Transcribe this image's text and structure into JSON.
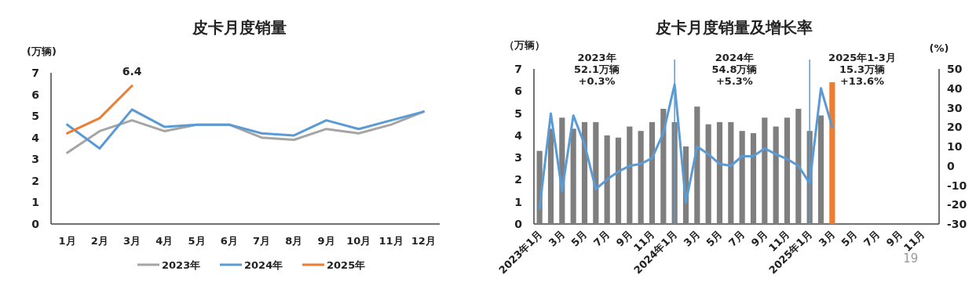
{
  "chart_data": [
    {
      "type": "line",
      "title": "皮卡月度销量",
      "ylabel": "(万辆)",
      "categories": [
        "1月",
        "2月",
        "3月",
        "4月",
        "5月",
        "6月",
        "7月",
        "8月",
        "9月",
        "10月",
        "11月",
        "12月"
      ],
      "series": [
        {
          "name": "2023年",
          "color": "#a5a5a5",
          "values": [
            3.3,
            4.3,
            4.8,
            4.3,
            4.6,
            4.6,
            4.0,
            3.9,
            4.4,
            4.2,
            4.6,
            5.2
          ]
        },
        {
          "name": "2024年",
          "color": "#5b9bd5",
          "values": [
            4.6,
            3.5,
            5.3,
            4.5,
            4.6,
            4.6,
            4.2,
            4.1,
            4.8,
            4.4,
            4.8,
            5.2
          ]
        },
        {
          "name": "2025年",
          "color": "#ed7d31",
          "values": [
            4.2,
            4.9,
            6.4,
            null,
            null,
            null,
            null,
            null,
            null,
            null,
            null,
            null
          ]
        }
      ],
      "ylim": [
        0,
        7
      ],
      "yticks": [
        0,
        1,
        2,
        3,
        4,
        5,
        6,
        7
      ],
      "grid": false,
      "legend": "bottom",
      "marker": "none",
      "annotations": [
        {
          "text": "6.4",
          "x": "3月",
          "y": 6.4
        }
      ]
    },
    {
      "type": "bar",
      "title": "皮卡月度销量及增长率",
      "ylabel": "（万辆）",
      "y2label": "(%)",
      "categories": [
        "2023年1月",
        null,
        "3月",
        null,
        "5月",
        null,
        "7月",
        null,
        "9月",
        null,
        "11月",
        null,
        "2024年1月",
        null,
        "3月",
        null,
        "5月",
        null,
        "7月",
        null,
        "9月",
        null,
        "11月",
        null,
        "2025年1月",
        null,
        "3月",
        null,
        "5月",
        null,
        "7月",
        null,
        "9月",
        null,
        "11月",
        null
      ],
      "series": [
        {
          "colors": [
            "#7f7f7f",
            "#7f7f7f",
            "#7f7f7f",
            "#7f7f7f",
            "#7f7f7f",
            "#7f7f7f",
            "#7f7f7f",
            "#7f7f7f",
            "#7f7f7f",
            "#7f7f7f",
            "#7f7f7f",
            "#7f7f7f",
            "#7f7f7f",
            "#7f7f7f",
            "#7f7f7f",
            "#7f7f7f",
            "#7f7f7f",
            "#7f7f7f",
            "#7f7f7f",
            "#7f7f7f",
            "#7f7f7f",
            "#7f7f7f",
            "#7f7f7f",
            "#7f7f7f",
            "#7f7f7f",
            "#7f7f7f",
            "#ed7d31",
            null,
            null,
            null,
            null,
            null,
            null,
            null,
            null,
            null
          ],
          "values": [
            3.3,
            4.3,
            4.8,
            4.3,
            4.6,
            4.6,
            4.0,
            3.9,
            4.4,
            4.2,
            4.6,
            5.2,
            4.6,
            3.5,
            5.3,
            4.5,
            4.6,
            4.6,
            4.2,
            4.1,
            4.8,
            4.4,
            4.8,
            5.2,
            4.2,
            4.9,
            6.4,
            null,
            null,
            null,
            null,
            null,
            null,
            null,
            null,
            null
          ]
        },
        {
          "type": "line",
          "axis": "y2",
          "color": "#5b9bd5",
          "values": [
            -22,
            27,
            -13,
            26,
            11,
            -12,
            -7,
            -3,
            0,
            1,
            4,
            17,
            42,
            -19,
            10,
            6,
            1,
            0,
            5,
            5,
            9,
            6,
            3.5,
            0,
            -9,
            40,
            20,
            null,
            null,
            null,
            null,
            null,
            null,
            null,
            null,
            null
          ]
        }
      ],
      "ylim": [
        0,
        7
      ],
      "yticks": [
        0,
        1,
        2,
        3,
        4,
        5,
        6,
        7
      ],
      "y2lim": [
        -30,
        50
      ],
      "y2ticks": [
        -30,
        -20,
        -10,
        0,
        10,
        20,
        30,
        40,
        50
      ],
      "grid": false,
      "legend": false,
      "ref_lines": [
        {
          "axis": "x",
          "value": "2024年1月",
          "color": "#5b9bd5"
        },
        {
          "axis": "x",
          "value": "2025年1月",
          "color": "#5b9bd5"
        }
      ],
      "annotations": [
        "2023年\n52.1万辆\n+0.3%",
        "2024年\n54.8万辆\n+5.3%",
        "2025年1-3月\n15.3万辆\n+13.6%",
        "19"
      ]
    }
  ]
}
